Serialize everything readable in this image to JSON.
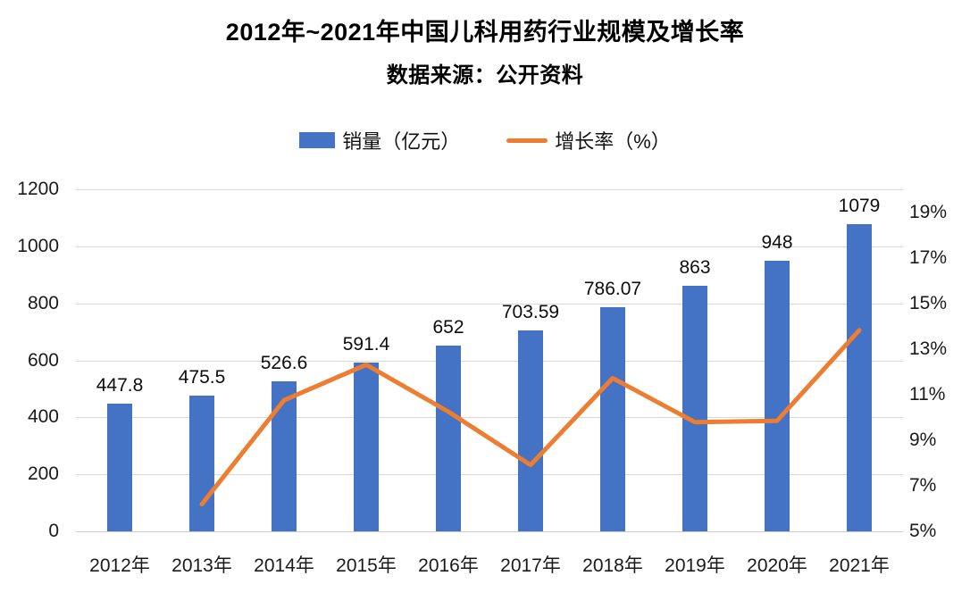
{
  "title": "2012年~2021年中国儿科用药行业规模及增长率",
  "subtitle": "数据来源：公开资料",
  "legend": [
    {
      "label": "销量（亿元）",
      "type": "bar",
      "color": "#4472C4"
    },
    {
      "label": "增长率（%）",
      "type": "line",
      "color": "#ED7D31"
    }
  ],
  "colors": {
    "bar": "#4472C4",
    "line": "#ED7D31",
    "gridline": "#d9d9d9",
    "text": "#000000"
  },
  "chart_data": {
    "type": "combo",
    "categories": [
      "2012年",
      "2013年",
      "2014年",
      "2015年",
      "2016年",
      "2017年",
      "2018年",
      "2019年",
      "2020年",
      "2021年"
    ],
    "series": [
      {
        "name": "销量（亿元）",
        "type": "bar",
        "axis": "left",
        "color": "#4472C4",
        "values": [
          447.8,
          475.5,
          526.6,
          591.4,
          652,
          703.59,
          786.07,
          863,
          948,
          1079
        ],
        "labels": [
          "447.8",
          "475.5",
          "526.6",
          "591.4",
          "652",
          "703.59",
          "786.07",
          "863",
          "948",
          "1079"
        ]
      },
      {
        "name": "增长率（%）",
        "type": "line",
        "axis": "right",
        "color": "#ED7D31",
        "values": [
          null,
          6.19,
          10.75,
          12.31,
          10.25,
          7.91,
          11.72,
          9.79,
          9.85,
          13.82
        ]
      }
    ],
    "left_axis": {
      "title": "",
      "min": 0,
      "max": 1200,
      "ticks": [
        "1200",
        "1000",
        "800",
        "600",
        "400",
        "200",
        "0"
      ]
    },
    "right_axis": {
      "title": "",
      "min": 5,
      "max": 20,
      "ticks": [
        "19%",
        "17%",
        "15%",
        "13%",
        "11%",
        "9%",
        "7%",
        "5%"
      ]
    },
    "grid": true,
    "legend_position": "top"
  }
}
